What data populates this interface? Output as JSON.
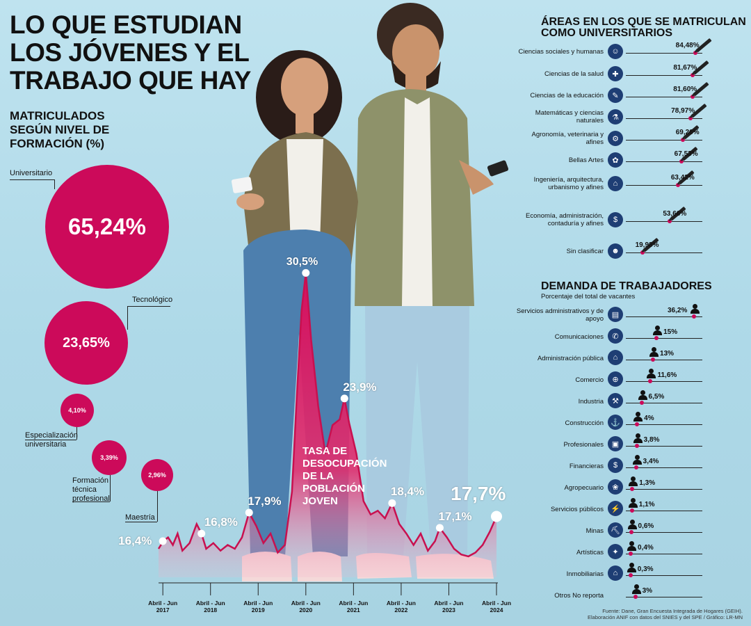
{
  "header": {
    "title_lines": [
      "LO QUE ESTUDIAN",
      "LOS JÓVENES Y EL",
      "TRABAJO QUE HAY"
    ]
  },
  "matriculados": {
    "title_lines": [
      "MATRICULADOS",
      "SEGÚN NIVEL DE",
      "FORMACIÓN (%)"
    ],
    "items": [
      {
        "label": "Universitario",
        "value": "65,24%"
      },
      {
        "label": "Tecnológico",
        "value": "23,65%"
      },
      {
        "label": "Especialización universitaria",
        "value": "4,10%"
      },
      {
        "label": "Formación técnica profesional",
        "value": "3,39%"
      },
      {
        "label": "Maestría",
        "value": "2,96%"
      }
    ]
  },
  "areas": {
    "title_lines": [
      "ÁREAS EN LOS QUE SE MATRICULAN",
      "COMO UNIVERSITARIOS"
    ],
    "rows": [
      {
        "label": "Ciencias sociales y humanas",
        "value": 84.48,
        "text": "84,48%",
        "icon": "people-icon"
      },
      {
        "label": "Ciencias de la salud",
        "value": 81.67,
        "text": "81,67%",
        "icon": "medical-icon"
      },
      {
        "label": "Ciencias de la educación",
        "value": 81.6,
        "text": "81,60%",
        "icon": "education-icon"
      },
      {
        "label": "Matemáticas y ciencias naturales",
        "value": 78.97,
        "text": "78,97%",
        "icon": "science-icon"
      },
      {
        "label": "Agronomía, veterinaria y afines",
        "value": 69.26,
        "text": "69,26%",
        "icon": "tractor-icon"
      },
      {
        "label": "Bellas Artes",
        "value": 67.53,
        "text": "67,53%",
        "icon": "palette-icon"
      },
      {
        "label": "Ingeniería, arquitectura, urbanismo y afines",
        "value": 63.42,
        "text": "63,42%",
        "icon": "engineer-icon"
      },
      {
        "label": "Economía, administración, contaduría y afines",
        "value": 53.66,
        "text": "53,66%",
        "icon": "money-icon"
      },
      {
        "label": "Sin clasificar",
        "value": 19.98,
        "text": "19,98%",
        "icon": "person-icon"
      }
    ]
  },
  "demanda": {
    "title": "DEMANDA DE TRABAJADORES",
    "subtitle": "Porcentaje del total de vacantes",
    "rows": [
      {
        "label": "Servicios administrativos y de apoyo",
        "value": 36.2,
        "text": "36,2%",
        "icon": "admin-icon"
      },
      {
        "label": "Comunicaciones",
        "value": 15,
        "text": "15%",
        "icon": "megaphone-icon"
      },
      {
        "label": "Administración pública",
        "value": 13,
        "text": "13%",
        "icon": "building-icon"
      },
      {
        "label": "Comercio",
        "value": 11.6,
        "text": "11,6%",
        "icon": "cart-icon"
      },
      {
        "label": "Industria",
        "value": 6.5,
        "text": "6,5%",
        "icon": "factory-icon"
      },
      {
        "label": "Construcción",
        "value": 4,
        "text": "4%",
        "icon": "crane-icon"
      },
      {
        "label": "Profesionales",
        "value": 3.8,
        "text": "3,8%",
        "icon": "briefcase-icon"
      },
      {
        "label": "Financieras",
        "value": 3.4,
        "text": "3,4%",
        "icon": "coins-icon"
      },
      {
        "label": "Agropecuario",
        "value": 1.3,
        "text": "1,3%",
        "icon": "farm-icon"
      },
      {
        "label": "Servicios públicos",
        "value": 1.1,
        "text": "1,1%",
        "icon": "utility-icon"
      },
      {
        "label": "Minas",
        "value": 0.6,
        "text": "0,6%",
        "icon": "mine-icon"
      },
      {
        "label": "Artísticas",
        "value": 0.4,
        "text": "0,4%",
        "icon": "art-icon"
      },
      {
        "label": "Inmobiliarias",
        "value": 0.3,
        "text": "0,3%",
        "icon": "house-icon"
      },
      {
        "label": "Otros No reporta",
        "value": 3,
        "text": "3%",
        "icon": ""
      }
    ]
  },
  "chart_data": {
    "type": "area",
    "title": "TASA DE DESOCUPACIÓN DE LA POBLACIÓN JOVEN",
    "x_ticks": [
      "Abril - Jun 2017",
      "Abril - Jun 2018",
      "Abril - Jun 2019",
      "Abril - Jun 2020",
      "Abril - Jun 2021",
      "Abril - Jun 2022",
      "Abril - Jun 2023",
      "Abril - Jun 2024"
    ],
    "labeled_points": [
      {
        "x": 2017.29,
        "value": 16.4,
        "text": "16,4%"
      },
      {
        "x": 2018.1,
        "value": 16.8,
        "text": "16,8%"
      },
      {
        "x": 2019.1,
        "value": 17.9,
        "text": "17,9%"
      },
      {
        "x": 2020.29,
        "value": 30.5,
        "text": "30,5%"
      },
      {
        "x": 2021.1,
        "value": 23.9,
        "text": "23,9%"
      },
      {
        "x": 2022.1,
        "value": 18.4,
        "text": "18,4%"
      },
      {
        "x": 2023.1,
        "value": 17.1,
        "text": "17,1%"
      },
      {
        "x": 2024.29,
        "value": 17.7,
        "text": "17,7%"
      }
    ],
    "series": [
      {
        "x": [
          2017.2,
          2017.3,
          2017.4,
          2017.5,
          2017.6,
          2017.7,
          2017.85,
          2018.0,
          2018.1,
          2018.2,
          2018.35,
          2018.5,
          2018.65,
          2018.8,
          2018.95,
          2019.1,
          2019.25,
          2019.4,
          2019.55,
          2019.7,
          2019.85,
          2020.0,
          2020.1,
          2020.2,
          2020.29,
          2020.4,
          2020.55,
          2020.7,
          2020.85,
          2021.0,
          2021.1,
          2021.2,
          2021.35,
          2021.5,
          2021.65,
          2021.8,
          2021.95,
          2022.1,
          2022.25,
          2022.4,
          2022.55,
          2022.7,
          2022.85,
          2023.0,
          2023.1,
          2023.25,
          2023.4,
          2023.55,
          2023.7,
          2023.85,
          2024.0,
          2024.15,
          2024.29
        ],
        "values": [
          16.0,
          16.4,
          16.6,
          16.2,
          16.8,
          15.9,
          16.3,
          17.3,
          16.8,
          16.0,
          16.3,
          15.9,
          16.2,
          16.0,
          16.6,
          17.9,
          17.2,
          16.3,
          16.8,
          15.8,
          16.2,
          19.0,
          24.0,
          28.5,
          30.5,
          27.0,
          23.5,
          21.0,
          22.5,
          22.8,
          23.9,
          22.6,
          21.0,
          18.5,
          17.8,
          18.0,
          17.6,
          18.4,
          17.3,
          16.8,
          16.2,
          16.8,
          15.9,
          16.4,
          17.1,
          16.6,
          16.0,
          15.7,
          15.6,
          15.8,
          16.2,
          16.9,
          17.7
        ]
      }
    ],
    "ylim": [
      14.5,
      31.5
    ]
  },
  "source": {
    "line1": "Fuente: Dane, Gran Encuesta Integrada de Hogares (GEIH).",
    "line2": "Elaboración ANIF con datos del SNIES y del SPE / Gráfico: LR-MN"
  }
}
